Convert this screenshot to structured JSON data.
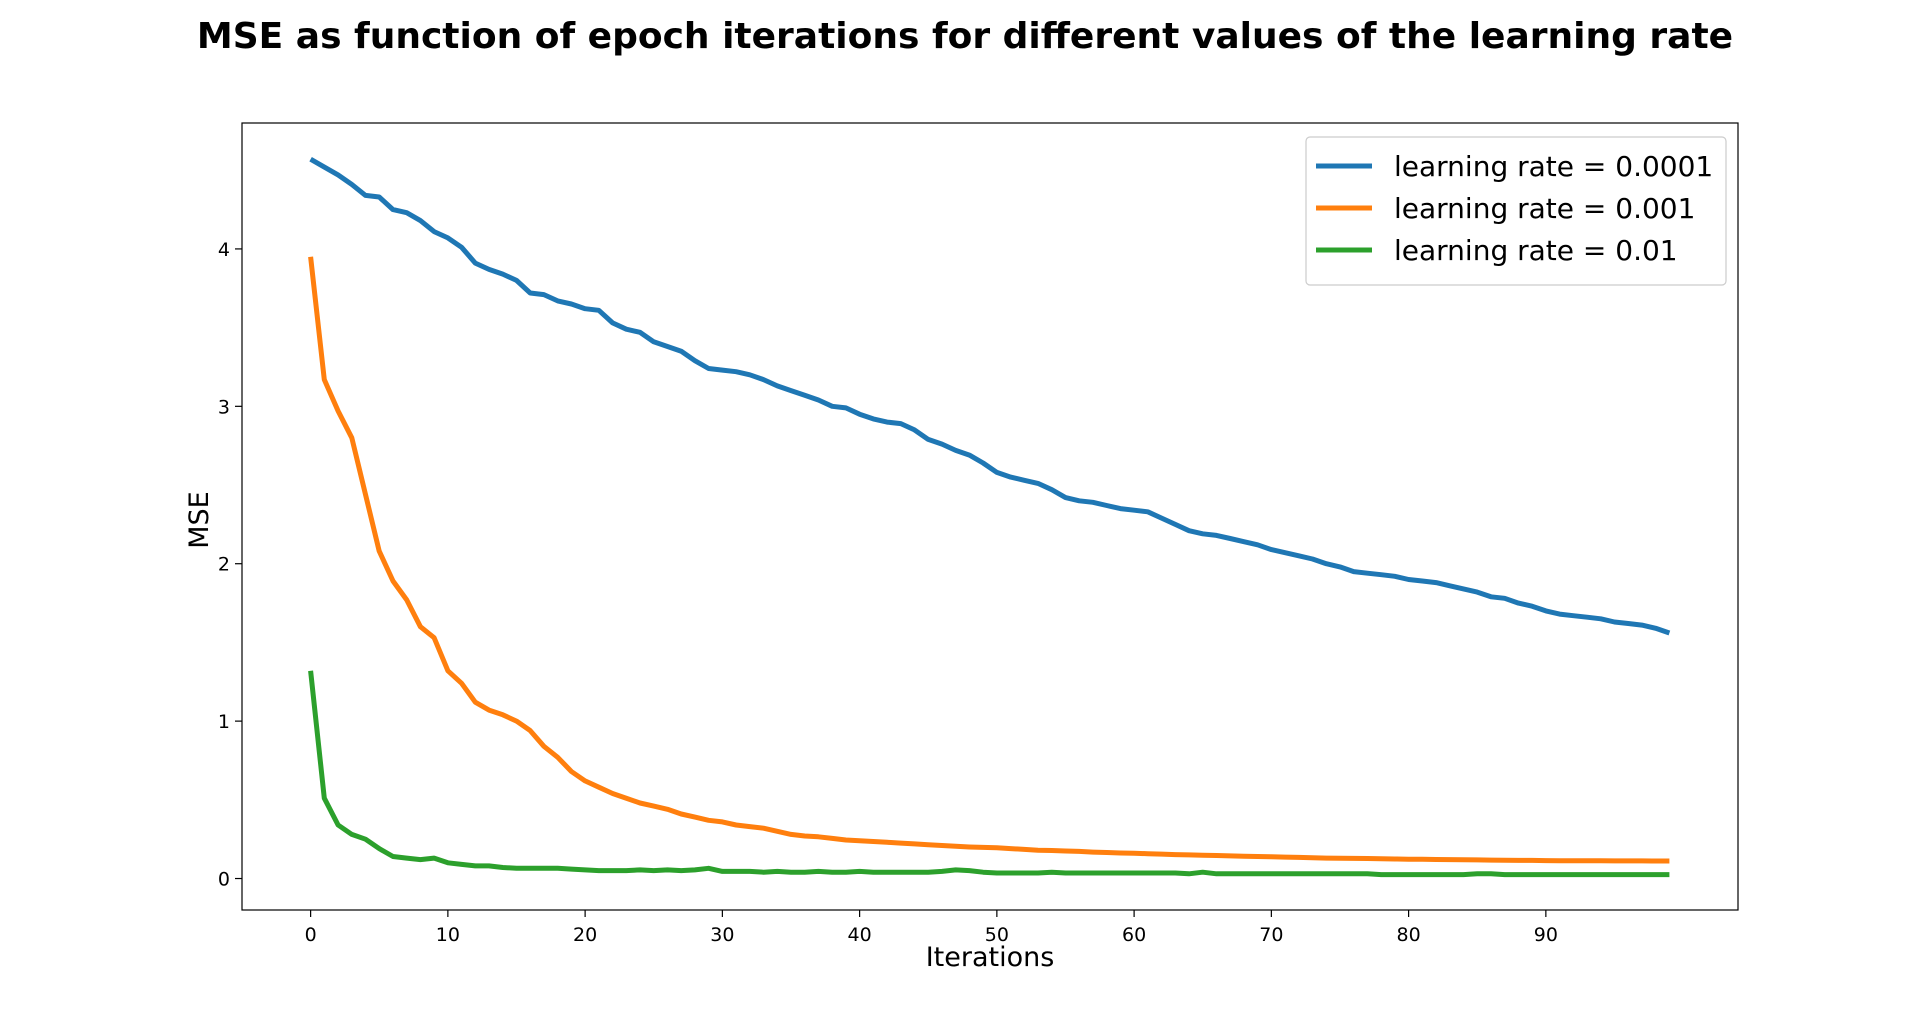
{
  "chart_data": {
    "type": "line",
    "title": "MSE as function of epoch iterations for different values of the learning rate",
    "xlabel": "Iterations",
    "ylabel": "MSE",
    "xlim": [
      -5,
      104
    ],
    "ylim": [
      -0.2,
      4.8
    ],
    "xticks": [
      0,
      10,
      20,
      30,
      40,
      50,
      60,
      70,
      80,
      90
    ],
    "yticks": [
      0,
      1,
      2,
      3,
      4
    ],
    "grid": false,
    "legend_position": "top-right",
    "series": [
      {
        "name": "learning rate = 0.0001",
        "color": "#1f77b4",
        "x_start": 0,
        "values": [
          4.57,
          4.52,
          4.47,
          4.41,
          4.34,
          4.33,
          4.25,
          4.23,
          4.18,
          4.11,
          4.07,
          4.01,
          3.91,
          3.87,
          3.84,
          3.8,
          3.72,
          3.71,
          3.67,
          3.65,
          3.62,
          3.61,
          3.53,
          3.49,
          3.47,
          3.41,
          3.38,
          3.35,
          3.29,
          3.24,
          3.23,
          3.22,
          3.2,
          3.17,
          3.13,
          3.1,
          3.07,
          3.04,
          3.0,
          2.99,
          2.95,
          2.92,
          2.9,
          2.89,
          2.85,
          2.79,
          2.76,
          2.72,
          2.69,
          2.64,
          2.58,
          2.55,
          2.53,
          2.51,
          2.47,
          2.42,
          2.4,
          2.39,
          2.37,
          2.35,
          2.34,
          2.33,
          2.29,
          2.25,
          2.21,
          2.19,
          2.18,
          2.16,
          2.14,
          2.12,
          2.09,
          2.07,
          2.05,
          2.03,
          2.0,
          1.98,
          1.95,
          1.94,
          1.93,
          1.92,
          1.9,
          1.89,
          1.88,
          1.86,
          1.84,
          1.82,
          1.79,
          1.78,
          1.75,
          1.73,
          1.7,
          1.68,
          1.67,
          1.66,
          1.65,
          1.63,
          1.62,
          1.61,
          1.59,
          1.56
        ]
      },
      {
        "name": "learning rate = 0.001",
        "color": "#ff7f0e",
        "x_start": 0,
        "values": [
          3.95,
          3.17,
          2.97,
          2.8,
          2.44,
          2.08,
          1.89,
          1.77,
          1.6,
          1.53,
          1.32,
          1.24,
          1.12,
          1.07,
          1.04,
          1.0,
          0.94,
          0.84,
          0.77,
          0.68,
          0.62,
          0.58,
          0.54,
          0.51,
          0.48,
          0.46,
          0.44,
          0.41,
          0.39,
          0.37,
          0.36,
          0.34,
          0.33,
          0.32,
          0.3,
          0.28,
          0.27,
          0.265,
          0.255,
          0.245,
          0.24,
          0.235,
          0.23,
          0.225,
          0.22,
          0.215,
          0.21,
          0.205,
          0.2,
          0.198,
          0.195,
          0.19,
          0.185,
          0.18,
          0.178,
          0.175,
          0.172,
          0.168,
          0.165,
          0.162,
          0.16,
          0.158,
          0.155,
          0.152,
          0.15,
          0.148,
          0.146,
          0.144,
          0.142,
          0.14,
          0.138,
          0.136,
          0.134,
          0.132,
          0.13,
          0.129,
          0.128,
          0.127,
          0.125,
          0.124,
          0.123,
          0.122,
          0.121,
          0.12,
          0.119,
          0.118,
          0.117,
          0.116,
          0.115,
          0.115,
          0.114,
          0.113,
          0.113,
          0.113,
          0.113,
          0.112,
          0.112,
          0.112,
          0.111,
          0.111
        ]
      },
      {
        "name": "learning rate = 0.01",
        "color": "#2ca02c",
        "x_start": 0,
        "values": [
          1.32,
          0.51,
          0.34,
          0.28,
          0.25,
          0.19,
          0.14,
          0.13,
          0.12,
          0.13,
          0.1,
          0.09,
          0.08,
          0.08,
          0.07,
          0.065,
          0.065,
          0.065,
          0.065,
          0.06,
          0.055,
          0.05,
          0.05,
          0.05,
          0.055,
          0.05,
          0.055,
          0.05,
          0.055,
          0.065,
          0.045,
          0.045,
          0.045,
          0.04,
          0.045,
          0.04,
          0.04,
          0.045,
          0.04,
          0.04,
          0.045,
          0.04,
          0.04,
          0.04,
          0.04,
          0.04,
          0.045,
          0.055,
          0.05,
          0.04,
          0.035,
          0.035,
          0.035,
          0.035,
          0.04,
          0.035,
          0.035,
          0.035,
          0.035,
          0.035,
          0.035,
          0.035,
          0.035,
          0.035,
          0.03,
          0.04,
          0.03,
          0.03,
          0.03,
          0.03,
          0.03,
          0.03,
          0.03,
          0.03,
          0.03,
          0.03,
          0.03,
          0.03,
          0.025,
          0.025,
          0.025,
          0.025,
          0.025,
          0.025,
          0.025,
          0.03,
          0.03,
          0.025,
          0.025,
          0.025,
          0.025,
          0.025,
          0.025,
          0.025,
          0.025,
          0.025,
          0.025,
          0.025,
          0.025,
          0.025
        ]
      }
    ]
  }
}
